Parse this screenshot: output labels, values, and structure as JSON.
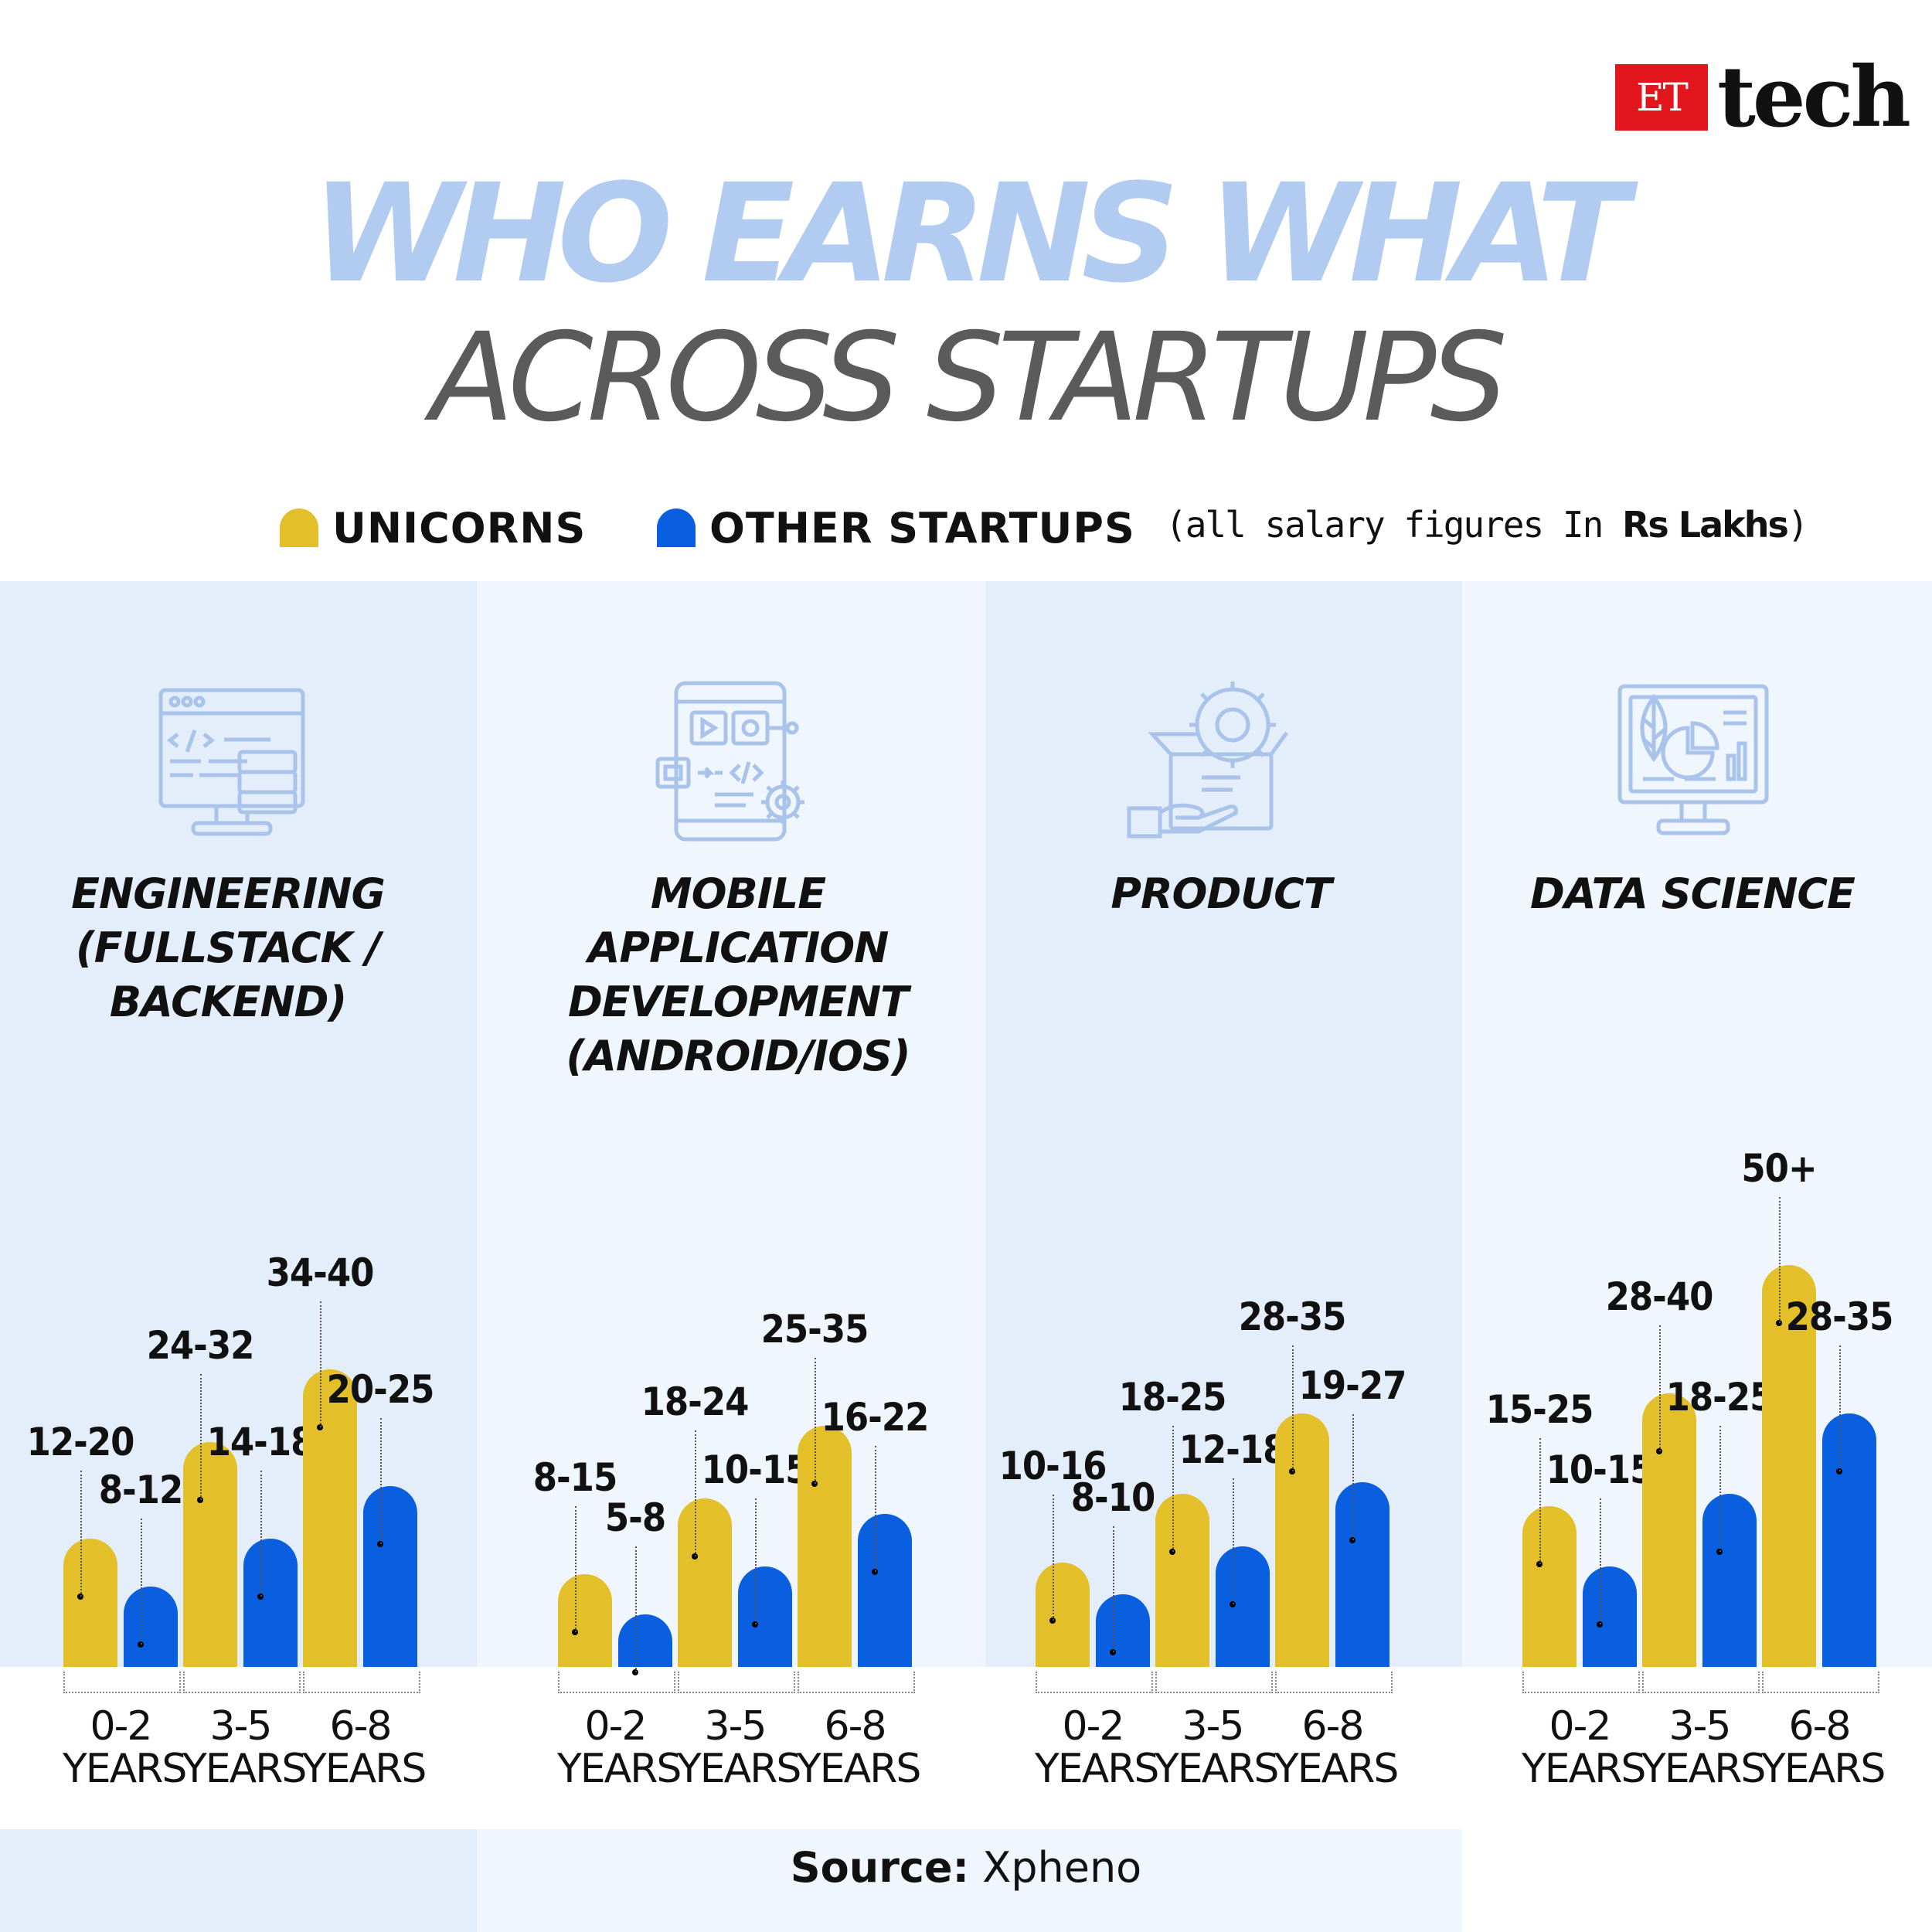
{
  "brand": {
    "badge": "ET",
    "name": "tech"
  },
  "title": {
    "line1": "WHO EARNS WHAT",
    "line2": "ACROSS STARTUPS"
  },
  "legend": {
    "unicorns": "UNICORNS",
    "others": "OTHER STARTUPS",
    "note_prefix": "(all salary figures In ",
    "note_bold": "Rs Lakhs",
    "note_suffix": ")"
  },
  "colors": {
    "unicorns": "#e3bf2a",
    "others": "#0a5ee0",
    "title_light": "#b1cbf1",
    "panel_dark": "#e4eefb",
    "panel_light": "#f0f6fd"
  },
  "source": {
    "label": "Source:",
    "value": "Xpheno"
  },
  "chart_data": [
    {
      "type": "bar",
      "title_lines": [
        "ENGINEERING",
        "(FULLSTACK /",
        "BACKEND)"
      ],
      "icon": "code-monitor-icon",
      "categories": [
        "0-2 YEARS",
        "3-5 YEARS",
        "6-8 YEARS"
      ],
      "series": [
        {
          "name": "UNICORNS",
          "labels": [
            "12-20",
            "24-32",
            "34-40"
          ],
          "values": [
            16,
            28,
            37
          ]
        },
        {
          "name": "OTHER STARTUPS",
          "labels": [
            "8-12",
            "14-18",
            "20-25"
          ],
          "values": [
            10,
            16,
            22.5
          ]
        }
      ],
      "ylabel": "Rs Lakhs"
    },
    {
      "type": "bar",
      "title_lines": [
        "MOBILE APPLICATION",
        "DEVELOPMENT",
        "(ANDROID/IOS)"
      ],
      "icon": "mobile-app-icon",
      "categories": [
        "0-2 YEARS",
        "3-5 YEARS",
        "6-8 YEARS"
      ],
      "series": [
        {
          "name": "UNICORNS",
          "labels": [
            "8-15",
            "18-24",
            "25-35"
          ],
          "values": [
            11.5,
            21,
            30
          ]
        },
        {
          "name": "OTHER STARTUPS",
          "labels": [
            "5-8",
            "10-15",
            "16-22"
          ],
          "values": [
            6.5,
            12.5,
            19
          ]
        }
      ],
      "ylabel": "Rs Lakhs"
    },
    {
      "type": "bar",
      "title_lines": [
        "PRODUCT"
      ],
      "icon": "product-box-icon",
      "categories": [
        "0-2 YEARS",
        "3-5 YEARS",
        "6-8 YEARS"
      ],
      "series": [
        {
          "name": "UNICORNS",
          "labels": [
            "10-16",
            "18-25",
            "28-35"
          ],
          "values": [
            13,
            21.5,
            31.5
          ]
        },
        {
          "name": "OTHER STARTUPS",
          "labels": [
            "8-10",
            "12-18",
            "19-27"
          ],
          "values": [
            9,
            15,
            23
          ]
        }
      ],
      "ylabel": "Rs Lakhs"
    },
    {
      "type": "bar",
      "title_lines": [
        "DATA SCIENCE"
      ],
      "icon": "data-science-monitor-icon",
      "categories": [
        "0-2 YEARS",
        "3-5 YEARS",
        "6-8 YEARS"
      ],
      "series": [
        {
          "name": "UNICORNS",
          "labels": [
            "15-25",
            "28-40",
            "50+"
          ],
          "values": [
            20,
            34,
            50
          ]
        },
        {
          "name": "OTHER STARTUPS",
          "labels": [
            "10-15",
            "18-25",
            "28-35"
          ],
          "values": [
            12.5,
            21.5,
            31.5
          ]
        }
      ],
      "ylabel": "Rs Lakhs"
    }
  ]
}
